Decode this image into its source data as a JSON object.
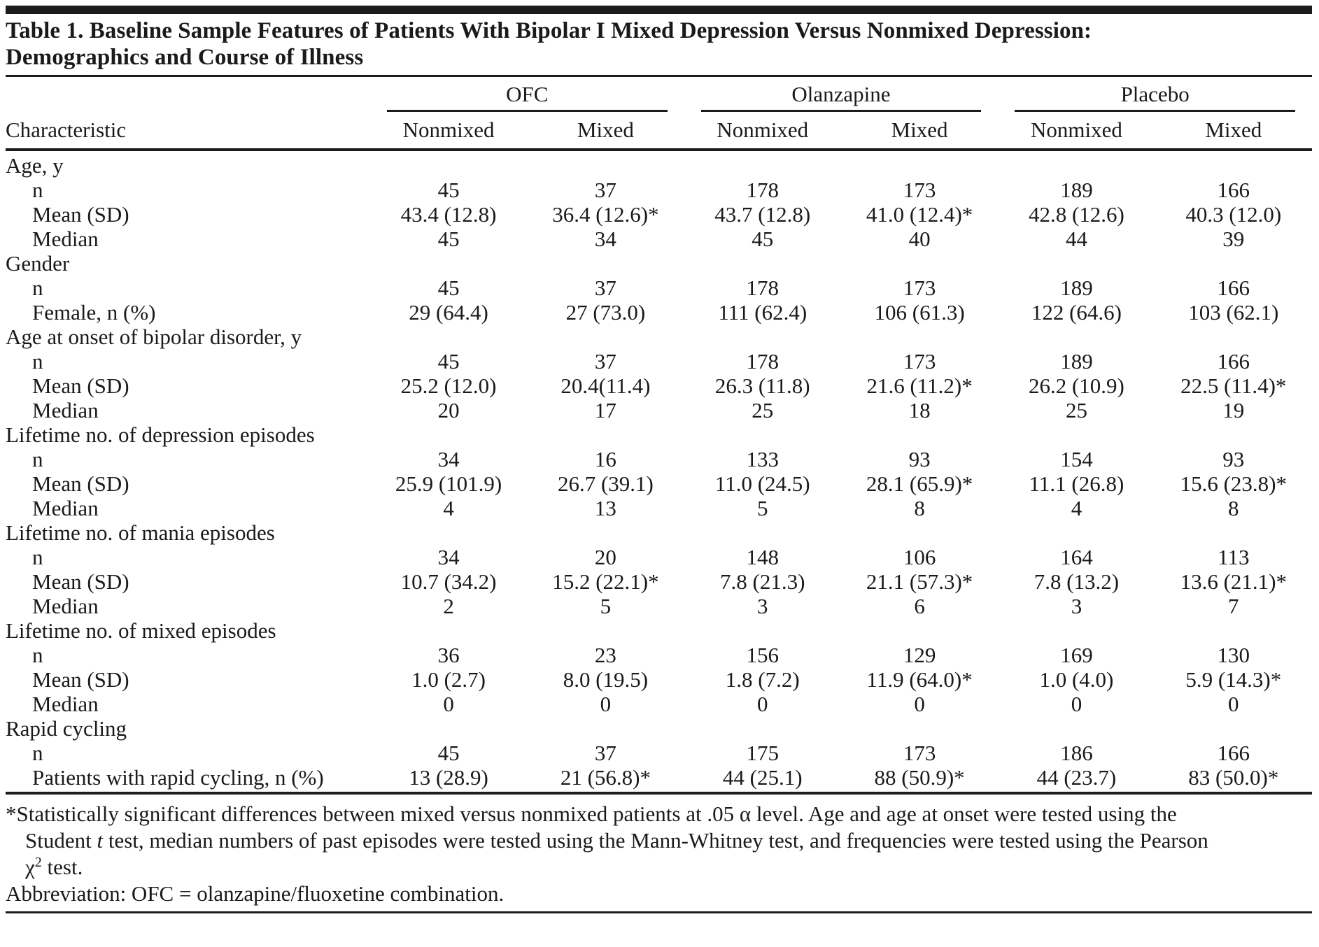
{
  "page": {
    "title_line1": "Table 1. Baseline Sample Features of Patients With Bipolar I Mixed Depression Versus Nonmixed Depression:",
    "title_line2": "Demographics and Course of Illness"
  },
  "table": {
    "stub_header": "Characteristic",
    "groups": [
      "OFC",
      "Olanzapine",
      "Placebo"
    ],
    "subheaders": [
      "Nonmixed",
      "Mixed",
      "Nonmixed",
      "Mixed",
      "Nonmixed",
      "Mixed"
    ],
    "sections": [
      {
        "label": "Age, y",
        "rows": [
          {
            "label": "n",
            "values": [
              "45",
              "37",
              "178",
              "173",
              "189",
              "166"
            ]
          },
          {
            "label": "Mean (SD)",
            "values": [
              "43.4 (12.8)",
              "36.4 (12.6)*",
              "43.7 (12.8)",
              "41.0 (12.4)*",
              "42.8 (12.6)",
              "40.3 (12.0)"
            ]
          },
          {
            "label": "Median",
            "values": [
              "45",
              "34",
              "45",
              "40",
              "44",
              "39"
            ]
          }
        ]
      },
      {
        "label": "Gender",
        "rows": [
          {
            "label": "n",
            "values": [
              "45",
              "37",
              "178",
              "173",
              "189",
              "166"
            ]
          },
          {
            "label": "Female, n (%)",
            "values": [
              "29 (64.4)",
              "27 (73.0)",
              "111 (62.4)",
              "106 (61.3)",
              "122 (64.6)",
              "103 (62.1)"
            ]
          }
        ]
      },
      {
        "label": "Age at onset of bipolar disorder, y",
        "rows": [
          {
            "label": "n",
            "values": [
              "45",
              "37",
              "178",
              "173",
              "189",
              "166"
            ]
          },
          {
            "label": "Mean (SD)",
            "values": [
              "25.2 (12.0)",
              "20.4(11.4)",
              "26.3 (11.8)",
              "21.6 (11.2)*",
              "26.2 (10.9)",
              "22.5 (11.4)*"
            ]
          },
          {
            "label": "Median",
            "values": [
              "20",
              "17",
              "25",
              "18",
              "25",
              "19"
            ]
          }
        ]
      },
      {
        "label": "Lifetime no. of depression episodes",
        "rows": [
          {
            "label": "n",
            "values": [
              "34",
              "16",
              "133",
              "93",
              "154",
              "93"
            ]
          },
          {
            "label": "Mean (SD)",
            "values": [
              "25.9 (101.9)",
              "26.7 (39.1)",
              "11.0 (24.5)",
              "28.1 (65.9)*",
              "11.1 (26.8)",
              "15.6 (23.8)*"
            ]
          },
          {
            "label": "Median",
            "values": [
              "4",
              "13",
              "5",
              "8",
              "4",
              "8"
            ]
          }
        ]
      },
      {
        "label": "Lifetime no. of mania episodes",
        "rows": [
          {
            "label": "n",
            "values": [
              "34",
              "20",
              "148",
              "106",
              "164",
              "113"
            ]
          },
          {
            "label": "Mean (SD)",
            "values": [
              "10.7 (34.2)",
              "15.2 (22.1)*",
              "7.8 (21.3)",
              "21.1 (57.3)*",
              "7.8 (13.2)",
              "13.6 (21.1)*"
            ]
          },
          {
            "label": "Median",
            "values": [
              "2",
              "5",
              "3",
              "6",
              "3",
              "7"
            ]
          }
        ]
      },
      {
        "label": "Lifetime no. of mixed episodes",
        "rows": [
          {
            "label": "n",
            "values": [
              "36",
              "23",
              "156",
              "129",
              "169",
              "130"
            ]
          },
          {
            "label": "Mean (SD)",
            "values": [
              "1.0 (2.7)",
              "8.0 (19.5)",
              "1.8 (7.2)",
              "11.9 (64.0)*",
              "1.0 (4.0)",
              "5.9 (14.3)*"
            ]
          },
          {
            "label": "Median",
            "values": [
              "0",
              "0",
              "0",
              "0",
              "0",
              "0"
            ]
          }
        ]
      },
      {
        "label": "Rapid cycling",
        "rows": [
          {
            "label": "n",
            "values": [
              "45",
              "37",
              "175",
              "173",
              "186",
              "166"
            ]
          },
          {
            "label": "Patients with rapid cycling, n (%)",
            "values": [
              "13 (28.9)",
              "21 (56.8)*",
              "44 (25.1)",
              "88 (50.9)*",
              "44 (23.7)",
              "83 (50.0)*"
            ]
          }
        ]
      }
    ]
  },
  "footnotes": {
    "significance_lines": [
      [
        {
          "t": "*Statistically significant differences between mixed versus nonmixed patients at .05 α level. Age and age at onset were tested using the"
        }
      ],
      [
        {
          "t": "Student "
        },
        {
          "t": "t",
          "style": "italic"
        },
        {
          "t": " test, median numbers of past episodes were tested using the Mann-Whitney test, and frequencies were tested using the Pearson"
        }
      ],
      [
        {
          "t": "χ"
        },
        {
          "t": "2",
          "style": "sup"
        },
        {
          "t": " test."
        }
      ]
    ],
    "abbreviation": "Abbreviation: OFC = olanzapine/fluoxetine combination."
  }
}
